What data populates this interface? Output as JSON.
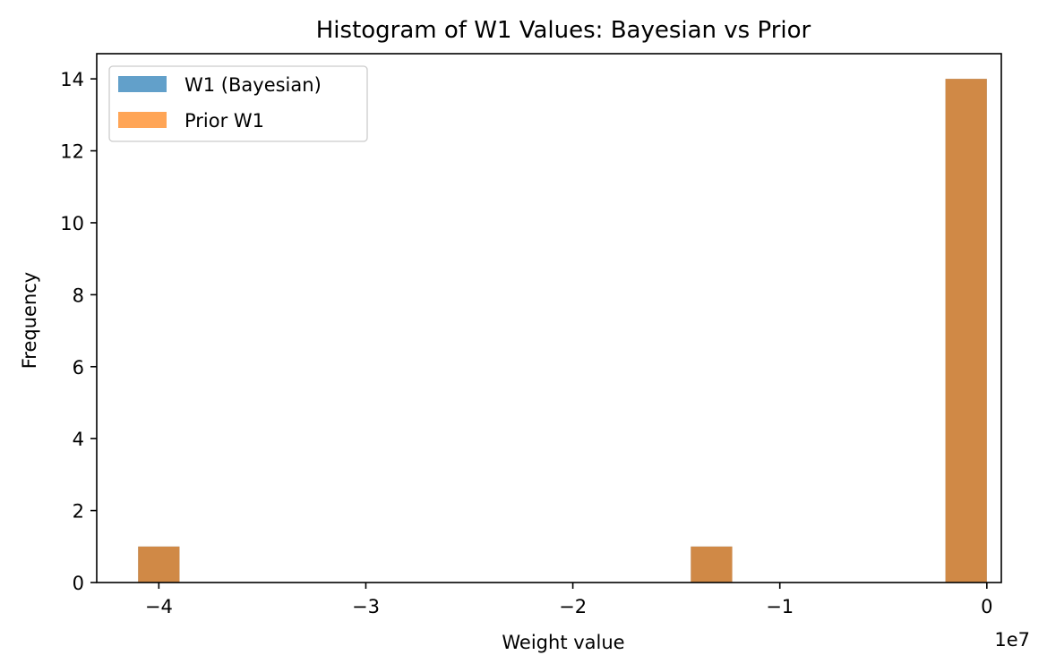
{
  "chart_data": {
    "type": "bar",
    "title": "Histogram of W1 Values: Bayesian vs Prior",
    "xlabel": "Weight value",
    "ylabel": "Frequency",
    "x_offset_label": "1e7",
    "xlim": [
      -4.3,
      0.07
    ],
    "ylim": [
      0,
      14.7
    ],
    "x_ticks": [
      -4,
      -3,
      -2,
      -1,
      0
    ],
    "x_tick_labels": [
      "−4",
      "−3",
      "−2",
      "−1",
      "0"
    ],
    "y_ticks": [
      0,
      2,
      4,
      6,
      8,
      10,
      12,
      14
    ],
    "y_tick_labels": [
      "0",
      "2",
      "4",
      "6",
      "8",
      "10",
      "12",
      "14"
    ],
    "grid": false,
    "legend_position": "top-left",
    "overlap_color": "#cf8946",
    "series": [
      {
        "name": "W1 (Bayesian)",
        "color": "#1f77b4",
        "opacity": 0.7,
        "bins": [
          {
            "x0": -4.1,
            "x1": -3.9,
            "count": 1
          },
          {
            "x0": -1.43,
            "x1": -1.23,
            "count": 1
          },
          {
            "x0": -0.2,
            "x1": 0.0,
            "count": 14
          }
        ]
      },
      {
        "name": "Prior W1",
        "color": "#ff7f0e",
        "opacity": 0.7,
        "bins": [
          {
            "x0": -4.1,
            "x1": -3.9,
            "count": 1
          },
          {
            "x0": -1.43,
            "x1": -1.23,
            "count": 1
          },
          {
            "x0": -0.2,
            "x1": 0.0,
            "count": 14
          }
        ]
      }
    ]
  }
}
